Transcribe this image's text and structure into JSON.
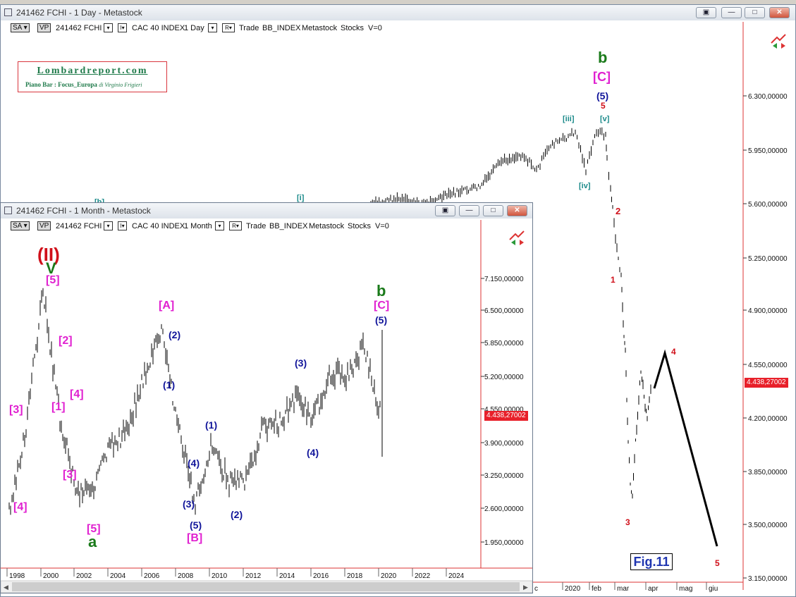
{
  "daily_window": {
    "title": "241462 FCHI - 1 Day - Metastock",
    "toolbar": {
      "sa": "SA",
      "vp": "VP",
      "symbol": "241462 FCHI",
      "name": "CAC 40 INDEX",
      "period": "1 Day",
      "r": "R",
      "trade": "Trade",
      "indicator": "BB_INDEX",
      "group": "Metastock",
      "stocks": "Stocks",
      "v": "V=0"
    },
    "price_tag": "4.438,27002",
    "fig_label": "Fig.11"
  },
  "monthly_window": {
    "title": "241462 FCHI - 1 Month - Metastock",
    "toolbar": {
      "sa": "SA",
      "vp": "VP",
      "symbol": "241462 FCHI",
      "name": "CAC 40 INDEX",
      "period": "1 Month",
      "r": "R",
      "trade": "Trade",
      "indicator": "BB_INDEX",
      "group": "Metastock",
      "stocks": "Stocks",
      "v": "V=0"
    },
    "price_tag": "4.438,27002"
  },
  "logo": {
    "line1": "Lombardreport.com",
    "line2": "Piano Bar : Focus_Europa",
    "line2_author": "di Virginio Frigieri"
  },
  "colors": {
    "red": "#d0101a",
    "magenta": "#e020d0",
    "blue": "#10149a",
    "green": "#1a7a1a",
    "teal": "#1a8a8a",
    "black": "#000000"
  },
  "chart_data": [
    {
      "type": "line",
      "chart": "daily",
      "y_ticks": [
        "6.300,00000",
        "5.950,00000",
        "5.600,00000",
        "5.250,00000",
        "4.900,00000",
        "4.550,00000",
        "4.200,00000",
        "3.850,00000",
        "3.500,00000",
        "3.150,00000"
      ],
      "x_ticks": [
        "c",
        "2020",
        "feb",
        "mar",
        "apr",
        "mag",
        "giu"
      ],
      "ylim": [
        3150,
        6300
      ],
      "last_value": 4438.27,
      "labels": [
        {
          "text": "b",
          "color": "green"
        },
        {
          "text": "[C]",
          "color": "magenta"
        },
        {
          "text": "(5)",
          "color": "blue"
        },
        {
          "text": "5",
          "color": "red"
        },
        {
          "text": "[v]",
          "color": "teal"
        },
        {
          "text": "[iii]",
          "color": "teal"
        },
        {
          "text": "[iv]",
          "color": "teal"
        },
        {
          "text": "[i]",
          "color": "teal"
        },
        {
          "text": "[b]",
          "color": "teal"
        },
        {
          "text": "2",
          "color": "red"
        },
        {
          "text": "1",
          "color": "red"
        },
        {
          "text": "3",
          "color": "red"
        },
        {
          "text": "4",
          "color": "red"
        },
        {
          "text": "5",
          "color": "red"
        }
      ],
      "projection": [
        {
          "date": "apr",
          "value": 4620
        },
        {
          "date": "giu",
          "value": 3350
        }
      ]
    },
    {
      "type": "line",
      "chart": "monthly",
      "y_ticks": [
        "7.150,00000",
        "6.500,00000",
        "5.850,00000",
        "5.200,00000",
        "4.550,00000",
        "3.900,00000",
        "3.250,00000",
        "2.600,00000",
        "1.950,00000"
      ],
      "x_ticks": [
        "1998",
        "2000",
        "2002",
        "2004",
        "2006",
        "2008",
        "2010",
        "2012",
        "2014",
        "2016",
        "2018",
        "2020",
        "2022",
        "2024"
      ],
      "ylim": [
        1950,
        7150
      ],
      "last_value": 4438.27,
      "labels": [
        {
          "text": "(II)",
          "color": "red"
        },
        {
          "text": "V",
          "color": "green"
        },
        {
          "text": "[5]",
          "color": "magenta"
        },
        {
          "text": "[2]",
          "color": "magenta"
        },
        {
          "text": "[3]",
          "color": "magenta"
        },
        {
          "text": "[4]",
          "color": "magenta"
        },
        {
          "text": "[1]",
          "color": "magenta"
        },
        {
          "text": "[4]",
          "color": "magenta"
        },
        {
          "text": "[3]",
          "color": "magenta"
        },
        {
          "text": "[5]",
          "color": "magenta"
        },
        {
          "text": "a",
          "color": "green"
        },
        {
          "text": "[A]",
          "color": "magenta"
        },
        {
          "text": "(2)",
          "color": "blue"
        },
        {
          "text": "(1)",
          "color": "blue"
        },
        {
          "text": "(4)",
          "color": "blue"
        },
        {
          "text": "(3)",
          "color": "blue"
        },
        {
          "text": "(5)",
          "color": "blue"
        },
        {
          "text": "[B]",
          "color": "magenta"
        },
        {
          "text": "(1)",
          "color": "blue"
        },
        {
          "text": "(2)",
          "color": "blue"
        },
        {
          "text": "(3)",
          "color": "blue"
        },
        {
          "text": "(4)",
          "color": "blue"
        },
        {
          "text": "b",
          "color": "green"
        },
        {
          "text": "[C]",
          "color": "magenta"
        },
        {
          "text": "(5)",
          "color": "blue"
        }
      ],
      "series": [
        {
          "x": [
            1998,
            1999,
            2000,
            2001,
            2002,
            2003,
            2004,
            2005,
            2006,
            2007,
            2008,
            2009,
            2010,
            2011,
            2012,
            2013,
            2014,
            2015,
            2016,
            2017,
            2018,
            2019,
            2020
          ],
          "values": [
            2600,
            4200,
            6900,
            4400,
            2900,
            3100,
            3800,
            4200,
            5200,
            6100,
            4200,
            2700,
            3900,
            3100,
            3200,
            4200,
            4300,
            4800,
            4400,
            5300,
            5200,
            5800,
            4400
          ]
        }
      ]
    }
  ]
}
